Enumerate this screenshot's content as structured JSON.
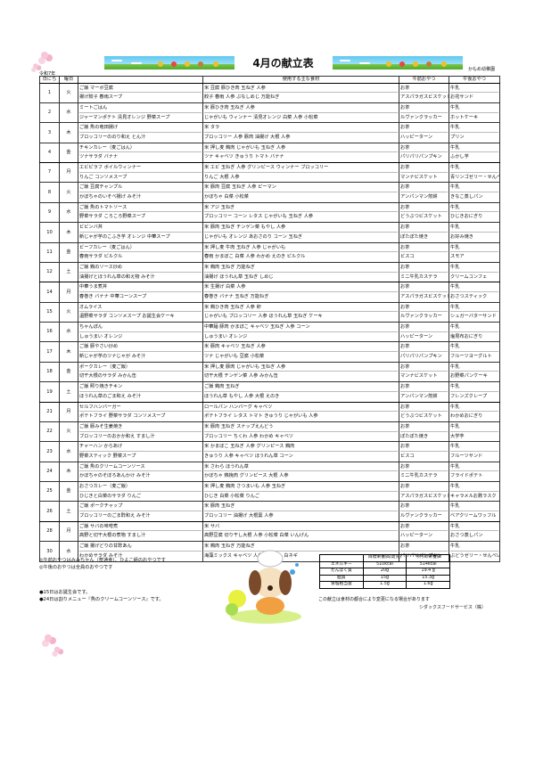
{
  "header": {
    "title": "4月の献立表",
    "era_year": "令和7年",
    "school": "かもめ幼稚園"
  },
  "columns": {
    "date": "日にち",
    "weekday": "曜日",
    "menu": "",
    "ingredients": "使用する主な食材",
    "am_snack": "午前おやつ",
    "pm_snack": "午後おやつ"
  },
  "rows": [
    {
      "date": "1",
      "day": "火",
      "menu": [
        "ご飯 マーボ豆腐",
        "揚げ餃子 春雨スープ"
      ],
      "ing": [
        "米 豆腐 豚ひき肉 玉ねぎ 人参",
        "餃子 春雨 人参 ぶなしめじ 万能ねぎ"
      ],
      "am": [
        "お茶",
        "アスパラガスビスケット"
      ],
      "pm": [
        "牛乳",
        "お花サンド"
      ]
    },
    {
      "date": "2",
      "day": "水",
      "menu": [
        "ミートごはん",
        "ジャーマンポテト 清見オレンジ 野菜スープ"
      ],
      "ing": [
        "米 豚ひき肉 玉ねぎ 人参",
        "じゃがいも ウィンナー 清見オレンジ 白菜 人参 小松菜"
      ],
      "am": [
        "お茶",
        "ルヴァンクラッカー"
      ],
      "pm": [
        "牛乳",
        "ホットケーキ"
      ]
    },
    {
      "date": "3",
      "day": "木",
      "menu": [
        "ご飯 魚の竜田揚げ",
        "ブロッコリーののり和え とん汁"
      ],
      "ing": [
        "米 タラ",
        "ブロッコリー 人参 豚肉 油揚げ 大根 人参"
      ],
      "am": [
        "お茶",
        "ハッピーターン"
      ],
      "pm": [
        "牛乳",
        "プリン"
      ]
    },
    {
      "date": "4",
      "day": "金",
      "menu": [
        "チキンカレー（麦ごはん）",
        "ツナサラダ バナナ"
      ],
      "ing": [
        "米 押し麦 鶏肉 じゃがいも 玉ねぎ 人参",
        "ツナ キャベツ きゅうり トマト バナナ"
      ],
      "am": [
        "お茶",
        "パリパリパンプキン"
      ],
      "pm": [
        "牛乳",
        "ふかし芋"
      ],
      "week_end": true
    },
    {
      "date": "7",
      "day": "月",
      "menu": [
        "エビピラフ ボイルウィンナー",
        "りんご コンソメスープ"
      ],
      "ing": [
        "米 エビ 玉ねぎ 人参 グリンピース ウィンナー ブロッコリー",
        "りんご 大根 人参"
      ],
      "am": [
        "お茶",
        "マンナビスケット"
      ],
      "pm": [
        "牛乳",
        "青リンゴゼリー・せんべい"
      ]
    },
    {
      "date": "8",
      "day": "火",
      "menu": [
        "ご飯 豆腐チャンプル",
        "かぼちゃのいそべ揚げ みそ汁"
      ],
      "ing": [
        "米 豚肉 豆腐 玉ねぎ 人参 ピーマン",
        "かぼちゃ 白菜 小松菜"
      ],
      "am": [
        "お茶",
        "アンパンマン煎餅"
      ],
      "pm": [
        "牛乳",
        "きなこ蒸しパン"
      ]
    },
    {
      "date": "9",
      "day": "水",
      "menu": [
        "ご飯 魚のトマトソース",
        "野菜サラダ ころころ野菜スープ"
      ],
      "ing": [
        "米 アジ 玉ねぎ",
        "ブロッコリー コーン レタス じゃがいも 玉ねぎ 人参"
      ],
      "am": [
        "お茶",
        "どうぶつビスケット"
      ],
      "pm": [
        "牛乳",
        "ひじきおにぎり"
      ]
    },
    {
      "date": "10",
      "day": "木",
      "menu": [
        "ビビンバ丼",
        "新じゃが芋のこふき芋 オレンジ 中華スープ"
      ],
      "ing": [
        "米 豚肉 玉ねぎ チンゲン菜 もやし 人参",
        "じゃがいも オレンジ あおさのり コーン 玉ねぎ"
      ],
      "am": [
        "お茶",
        "ぽたぽた焼き"
      ],
      "pm": [
        "牛乳",
        "お好み焼き"
      ]
    },
    {
      "date": "11",
      "day": "金",
      "menu": [
        "ビーフカレー（麦ごはん）",
        "春雨サラダ ピルクル"
      ],
      "ing": [
        "米 押し麦 牛肉 玉ねぎ 人参 じゃがいも",
        "春雨 かまぼこ 白菜 人参 わかめ えのき ピルクル"
      ],
      "am": [
        "お茶",
        "ビスコ"
      ],
      "pm": [
        "牛乳",
        "スモア"
      ]
    },
    {
      "date": "12",
      "day": "土",
      "menu": [
        "ご飯 鶏のソース炒め",
        "油揚げとほうれん草の和え物 みそ汁"
      ],
      "ing": [
        "米 鶏肉 玉ねぎ 万能ねぎ",
        "油揚げ ほうれん草 玉ねぎ しめじ"
      ],
      "am": [
        "お茶",
        "ミニ牛乳カステラ"
      ],
      "pm": [
        "牛乳",
        "クリームコンフェ"
      ],
      "week_end": true
    },
    {
      "date": "14",
      "day": "月",
      "menu": [
        "中華うま煮丼",
        "春巻き バナナ 中華コーンスープ"
      ],
      "ing": [
        "米 生揚げ 白菜 人参",
        "春巻き バナナ 玉ねぎ 万能ねぎ"
      ],
      "am": [
        "お茶",
        "アスパラガスビスケット"
      ],
      "pm": [
        "牛乳",
        "おさつスティック"
      ]
    },
    {
      "date": "15",
      "day": "火",
      "menu": [
        "オムライス",
        "温野菜サラダ コンソメスープ お誕生会ケーキ"
      ],
      "ing": [
        "米 鶏ひき肉 玉ねぎ 人参 卵",
        "じゃがいも ブロッコリー 人参 ほうれん草 玉ねぎ ケーキ"
      ],
      "am": [
        "お茶",
        "ルヴァンクラッカー"
      ],
      "pm": [
        "牛乳",
        "シュガーバターサンド"
      ]
    },
    {
      "date": "16",
      "day": "水",
      "menu": [
        "ちゃんぽん",
        "しゅうまい オレンジ"
      ],
      "ing": [
        "中華麺 豚肉 かまぼこ キャベツ 玉ねぎ 人参 コーン",
        "しゅうまい オレンジ"
      ],
      "am": [
        "お茶",
        "ハッピーターン"
      ],
      "pm": [
        "牛乳",
        "塩昆布おにぎり"
      ]
    },
    {
      "date": "17",
      "day": "木",
      "menu": [
        "ご飯 豚やさい炒め",
        "新じゃが芋のツナじゃが みそ汁"
      ],
      "ing": [
        "米 豚肉 キャベツ 玉ねぎ 人参",
        "ツナ じゃがいも 豆腐 小松菜"
      ],
      "am": [
        "お茶",
        "パリパリパンプキン"
      ],
      "pm": [
        "牛乳",
        "フルーツヨーグルト"
      ]
    },
    {
      "date": "18",
      "day": "金",
      "menu": [
        "ポークカレー（麦ご飯）",
        "切干大根のサラダ みかん缶"
      ],
      "ing": [
        "米 押し麦 豚肉 じゃがいも 玉ねぎ 人参",
        "切干大根 チンゲン菜 人参 みかん缶"
      ],
      "am": [
        "お茶",
        "マンナビスケット"
      ],
      "pm": [
        "牛乳",
        "お野菜パンケーキ"
      ]
    },
    {
      "date": "19",
      "day": "土",
      "menu": [
        "ご飯 照り焼きチキン",
        "ほうれん草のごま和え みそ汁"
      ],
      "ing": [
        "ご飯 鶏肉 玉ねぎ",
        "ほうれん草 もやし 人参 大根 えのき"
      ],
      "am": [
        "お茶",
        "アンパンマン煎餅"
      ],
      "pm": [
        "牛乳",
        "フレンズクレープ"
      ],
      "week_end": true
    },
    {
      "date": "21",
      "day": "月",
      "menu": [
        "セルフハンバーガー",
        "ポテトフライ 野菜サラダ コンソメスープ"
      ],
      "ing": [
        "ロールパン ハンバーグ キャベツ",
        "ポテトフライ レタス トマト きゅうり じゃがいも 人参"
      ],
      "am": [
        "お茶",
        "どうぶつビスケット"
      ],
      "pm": [
        "牛乳",
        "わかめおにぎり"
      ]
    },
    {
      "date": "22",
      "day": "火",
      "menu": [
        "ご飯 豚みそ生姜焼き",
        "ブロッコリーのおかか和え すまし汁"
      ],
      "ing": [
        "米 豚肉 玉ねぎ スナップえんどう",
        "ブロッコリー ちくわ 人参 わかめ キャベツ"
      ],
      "am": [
        "お茶",
        "ぽたぽた焼き"
      ],
      "pm": [
        "牛乳",
        "大学芋"
      ]
    },
    {
      "date": "23",
      "day": "水",
      "menu": [
        "チャーハン からあげ",
        "野菜スティック 野菜スープ"
      ],
      "ing": [
        "米 かまぼこ 玉ねぎ 人参 グリンピース 鶏肉",
        "きゅうり 人参 キャベツ ほうれん草 コーン"
      ],
      "am": [
        "お茶",
        "ビスコ"
      ],
      "pm": [
        "牛乳",
        "フルーツサンド"
      ]
    },
    {
      "date": "24",
      "day": "木",
      "menu": [
        "ご飯 魚のクリームコーンソース",
        "かぼちゃのそぼろあんかけ みそ汁"
      ],
      "ing": [
        "米 さわら ほうれん草",
        "かぼちゃ 鶏挽肉 グリンピース 大根 人参"
      ],
      "am": [
        "お茶",
        "ミニ牛乳カステラ"
      ],
      "pm": [
        "牛乳",
        "フライドポテト"
      ]
    },
    {
      "date": "25",
      "day": "金",
      "menu": [
        "おさつカレー（麦ご飯）",
        "ひじきと白菜のサラダ りんご"
      ],
      "ing": [
        "米 押し麦 鶏肉 さつまいも 人参 玉ねぎ",
        "ひじき 白菜 小松菜 りんご"
      ],
      "am": [
        "お茶",
        "アスパラガスビスケット"
      ],
      "pm": [
        "牛乳",
        "キャラメルお麩ラスク"
      ]
    },
    {
      "date": "26",
      "day": "土",
      "menu": [
        "ご飯 ポークチャップ",
        "ブロッコリーのごま酢和え みそ汁"
      ],
      "ing": [
        "米 豚肉 玉ねぎ",
        "ブロッコリー 油揚げ 大根葉 人参"
      ],
      "am": [
        "お茶",
        "ルヴァンクラッカー"
      ],
      "pm": [
        "牛乳",
        "ベアクリームワッフル"
      ],
      "week_end": true
    },
    {
      "date": "28",
      "day": "月",
      "menu": [
        "ご飯 サバの味噌煮",
        "高野と切干大根の煮物 すまし汁"
      ],
      "ing": [
        "米 サバ",
        "高野豆腐 切り干し大根 人参 小松菜 白菜 いんげん"
      ],
      "am": [
        "お茶",
        "ハッピーターン"
      ],
      "pm": [
        "牛乳",
        "おさつ蒸しパン"
      ]
    },
    {
      "date": "30",
      "day": "水",
      "menu": [
        "ご飯 揚げどりの甘酢あん",
        "わかめサラダ みそ汁"
      ],
      "ing": [
        "米 鶏肉 玉ねぎ 万能ねぎ",
        "海藻ミックス キャベツ 人参 おつゆふ 白ネギ"
      ],
      "am": [
        "お茶",
        "パリパリパンプキン"
      ],
      "pm": [
        "牛乳",
        "ぶどうゼリー・せんべい"
      ]
    }
  ],
  "notes": {
    "snack1": "◎午前おやつはみみちゃん（普通食）、ひよこ組のおやつです",
    "snack2": "◎午後のおやつは全員のおやつです",
    "event1": "●15日はお誕生会です。",
    "event2": "●24日は割りメニュー『魚のクリームコーンソース』です。"
  },
  "nutrition": {
    "headers": [
      "",
      "目標栄養価(幼児)",
      "今月の栄養価"
    ],
    "rows": [
      [
        "エネルギー",
        "510kcal",
        "514kcal"
      ],
      [
        "たんぱく質",
        "20g",
        "19.4 g"
      ],
      [
        "脂質",
        "15g",
        "15.3g"
      ],
      [
        "食塩相当量",
        "1.5g",
        "1.6g"
      ]
    ]
  },
  "footer": {
    "notice": "この献立は食材の都合により変更になる場合があります",
    "company": "シダックスフードサービス（株）"
  },
  "icons": [
    "cherry-blossom-icon",
    "banner-illustration",
    "dog-chef-illustration"
  ]
}
